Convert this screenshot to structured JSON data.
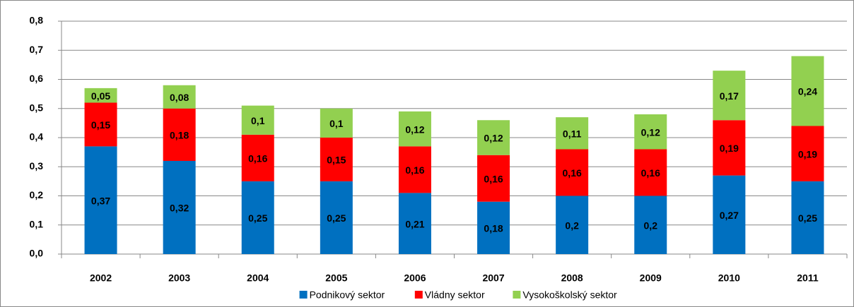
{
  "chart_data": {
    "type": "stacked_bar",
    "categories": [
      "2002",
      "2003",
      "2004",
      "2005",
      "2006",
      "2007",
      "2008",
      "2009",
      "2010",
      "2011"
    ],
    "series": [
      {
        "name": "Podnikový sektor",
        "color": "#0070c0",
        "values": [
          0.37,
          0.32,
          0.25,
          0.25,
          0.21,
          0.18,
          0.2,
          0.2,
          0.27,
          0.25
        ],
        "value_labels": [
          "0,37",
          "0,32",
          "0,25",
          "0,25",
          "0,21",
          "0,18",
          "0,2",
          "0,2",
          "0,27",
          "0,25"
        ]
      },
      {
        "name": "Vládny sektor",
        "color": "#ff0000",
        "values": [
          0.15,
          0.18,
          0.16,
          0.15,
          0.16,
          0.16,
          0.16,
          0.16,
          0.19,
          0.19
        ],
        "value_labels": [
          "0,15",
          "0,18",
          "0,16",
          "0,15",
          "0,16",
          "0,16",
          "0,16",
          "0,16",
          "0,19",
          "0,19"
        ]
      },
      {
        "name": "Vysokoškolský sektor",
        "color": "#92d050",
        "values": [
          0.05,
          0.08,
          0.1,
          0.1,
          0.12,
          0.12,
          0.11,
          0.12,
          0.17,
          0.24
        ],
        "value_labels": [
          "0,05",
          "0,08",
          "0,1",
          "0,1",
          "0,12",
          "0,12",
          "0,11",
          "0,12",
          "0,17",
          "0,24"
        ]
      }
    ],
    "ylim": [
      0,
      0.8
    ],
    "yticks": [
      {
        "value": 0,
        "label": "0,0"
      },
      {
        "value": 0.1,
        "label": "0,1"
      },
      {
        "value": 0.2,
        "label": "0,2"
      },
      {
        "value": 0.3,
        "label": "0,3"
      },
      {
        "value": 0.4,
        "label": "0,4"
      },
      {
        "value": 0.5,
        "label": "0,5"
      },
      {
        "value": 0.6,
        "label": "0,6"
      },
      {
        "value": 0.7,
        "label": "0,7"
      },
      {
        "value": 0.8,
        "label": "0,8"
      }
    ],
    "grid": true,
    "legend": "bottom"
  }
}
